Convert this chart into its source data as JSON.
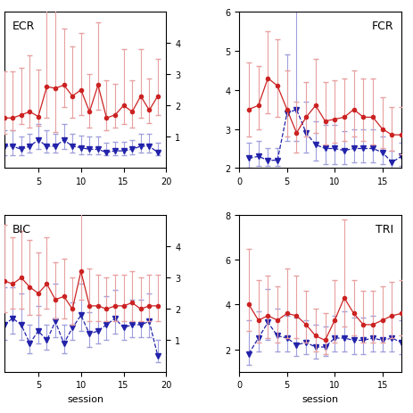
{
  "ECR": {
    "label": "ECR",
    "xlim": [
      1,
      20
    ],
    "ylim": [
      0,
      5
    ],
    "yticks": [
      1,
      2,
      3,
      4
    ],
    "xticks": [
      5,
      10,
      15,
      20
    ],
    "yaxis_right": true,
    "red_x": [
      1,
      2,
      3,
      4,
      5,
      6,
      7,
      8,
      9,
      10,
      11,
      12,
      13,
      14,
      15,
      16,
      17,
      18,
      19
    ],
    "red_y": [
      1.6,
      1.6,
      1.7,
      1.8,
      1.65,
      2.6,
      2.55,
      2.65,
      2.3,
      2.5,
      1.8,
      2.65,
      1.6,
      1.7,
      2.0,
      1.8,
      2.3,
      1.85,
      2.3
    ],
    "red_err_lo": [
      0.5,
      0.4,
      0.3,
      0.5,
      0.3,
      1.0,
      1.4,
      0.7,
      0.7,
      0.8,
      0.5,
      0.8,
      0.4,
      0.4,
      0.6,
      0.5,
      0.7,
      0.4,
      0.6
    ],
    "red_err_hi": [
      1.5,
      1.5,
      1.5,
      1.8,
      1.5,
      2.5,
      2.5,
      1.8,
      1.6,
      1.8,
      1.2,
      2.0,
      1.2,
      1.0,
      1.8,
      1.0,
      1.5,
      1.0,
      1.2
    ],
    "blue_x": [
      1,
      2,
      3,
      4,
      5,
      6,
      7,
      8,
      9,
      10,
      11,
      12,
      13,
      14,
      15,
      16,
      17,
      18,
      19
    ],
    "blue_y": [
      0.7,
      0.7,
      0.6,
      0.7,
      0.9,
      0.7,
      0.7,
      0.9,
      0.7,
      0.65,
      0.6,
      0.6,
      0.5,
      0.55,
      0.55,
      0.6,
      0.7,
      0.7,
      0.5
    ],
    "blue_err_lo": [
      0.3,
      0.3,
      0.2,
      0.2,
      0.3,
      0.2,
      0.2,
      0.3,
      0.2,
      0.2,
      0.15,
      0.15,
      0.1,
      0.15,
      0.15,
      0.15,
      0.2,
      0.2,
      0.1
    ],
    "blue_err_hi": [
      0.5,
      0.5,
      0.4,
      0.4,
      0.5,
      0.5,
      0.4,
      0.5,
      0.4,
      0.4,
      0.4,
      0.4,
      0.3,
      0.3,
      0.3,
      0.3,
      0.4,
      0.4,
      0.3
    ]
  },
  "FCR": {
    "label": "FCR",
    "xlim": [
      0,
      17
    ],
    "ylim": [
      2,
      6
    ],
    "yticks": [
      2,
      3,
      4,
      5,
      6
    ],
    "xticks": [
      0,
      5,
      10,
      15
    ],
    "yaxis_right": false,
    "red_x": [
      1,
      2,
      3,
      4,
      5,
      6,
      7,
      8,
      9,
      10,
      11,
      12,
      13,
      14,
      15,
      16,
      17
    ],
    "red_y": [
      3.5,
      3.6,
      4.3,
      4.1,
      3.5,
      2.9,
      3.3,
      3.6,
      3.2,
      3.25,
      3.3,
      3.5,
      3.3,
      3.3,
      3.0,
      2.85,
      2.85
    ],
    "red_err_lo": [
      0.7,
      0.6,
      0.9,
      0.8,
      0.7,
      0.5,
      0.5,
      0.7,
      0.6,
      0.6,
      0.6,
      0.7,
      0.6,
      0.7,
      0.5,
      0.4,
      0.5
    ],
    "red_err_hi": [
      1.2,
      1.0,
      1.2,
      1.2,
      1.0,
      0.8,
      0.9,
      1.2,
      1.0,
      1.0,
      1.0,
      1.0,
      1.0,
      1.0,
      0.8,
      0.7,
      0.7
    ],
    "blue_x": [
      1,
      2,
      3,
      4,
      5,
      6,
      7,
      8,
      9,
      10,
      11,
      12,
      13,
      14,
      15,
      16,
      17
    ],
    "blue_y": [
      2.25,
      2.3,
      2.2,
      2.2,
      3.4,
      3.5,
      2.9,
      2.6,
      2.5,
      2.5,
      2.45,
      2.5,
      2.5,
      2.5,
      2.4,
      2.15,
      2.3
    ],
    "blue_err_lo": [
      0.25,
      0.25,
      0.15,
      0.15,
      0.7,
      0.8,
      0.5,
      0.4,
      0.4,
      0.4,
      0.35,
      0.35,
      0.35,
      0.35,
      0.3,
      0.2,
      0.25
    ],
    "blue_err_hi": [
      0.4,
      0.4,
      0.3,
      0.3,
      1.5,
      2.6,
      0.8,
      0.6,
      0.6,
      0.6,
      0.5,
      0.5,
      0.5,
      0.5,
      0.4,
      0.3,
      0.35
    ]
  },
  "BIC": {
    "label": "BIC",
    "xlim": [
      1,
      20
    ],
    "ylim": [
      0,
      5
    ],
    "yticks": [
      1,
      2,
      3,
      4
    ],
    "xticks": [
      5,
      10,
      15,
      20
    ],
    "yaxis_right": true,
    "red_x": [
      1,
      2,
      3,
      4,
      5,
      6,
      7,
      8,
      9,
      10,
      11,
      12,
      13,
      14,
      15,
      16,
      17,
      18,
      19
    ],
    "red_y": [
      2.9,
      2.8,
      3.0,
      2.7,
      2.5,
      2.8,
      2.3,
      2.4,
      2.0,
      3.2,
      2.1,
      2.1,
      2.0,
      2.1,
      2.1,
      2.2,
      2.0,
      2.1,
      2.1
    ],
    "red_err_lo": [
      1.0,
      0.8,
      1.0,
      0.9,
      0.7,
      0.8,
      0.6,
      0.7,
      0.5,
      0.9,
      0.5,
      0.5,
      0.4,
      0.5,
      0.5,
      0.6,
      0.4,
      0.5,
      0.5
    ],
    "red_err_hi": [
      1.8,
      1.5,
      1.5,
      1.5,
      1.3,
      1.5,
      1.2,
      1.2,
      1.0,
      2.0,
      1.2,
      1.0,
      1.0,
      1.0,
      1.0,
      1.0,
      1.0,
      1.0,
      1.0
    ],
    "blue_x": [
      1,
      2,
      3,
      4,
      5,
      6,
      7,
      8,
      9,
      10,
      11,
      12,
      13,
      14,
      15,
      16,
      17,
      18,
      19
    ],
    "blue_y": [
      1.5,
      1.7,
      1.5,
      0.9,
      1.3,
      1.0,
      1.6,
      0.9,
      1.4,
      1.8,
      1.2,
      1.3,
      1.5,
      1.7,
      1.4,
      1.5,
      1.5,
      1.6,
      0.5
    ],
    "blue_err_lo": [
      0.5,
      0.5,
      0.5,
      0.3,
      0.4,
      0.3,
      0.5,
      0.3,
      0.4,
      0.5,
      0.4,
      0.4,
      0.5,
      0.5,
      0.4,
      0.4,
      0.4,
      0.5,
      0.2
    ],
    "blue_err_hi": [
      1.2,
      1.0,
      1.0,
      0.6,
      0.8,
      0.5,
      1.2,
      0.6,
      0.8,
      1.0,
      0.7,
      0.8,
      0.9,
      0.9,
      0.7,
      0.8,
      0.8,
      0.9,
      0.5
    ]
  },
  "TRI": {
    "label": "TRI",
    "xlim": [
      0,
      17
    ],
    "ylim": [
      1,
      8
    ],
    "yticks": [
      2,
      4,
      6,
      8
    ],
    "xticks": [
      0,
      5,
      10,
      15
    ],
    "yaxis_right": false,
    "red_x": [
      1,
      2,
      3,
      4,
      5,
      6,
      7,
      8,
      9,
      10,
      11,
      12,
      13,
      14,
      15,
      16,
      17
    ],
    "red_y": [
      4.0,
      3.3,
      3.5,
      3.3,
      3.6,
      3.5,
      3.1,
      2.6,
      2.4,
      3.3,
      4.3,
      3.6,
      3.1,
      3.1,
      3.3,
      3.5,
      3.6
    ],
    "red_err_lo": [
      1.2,
      1.0,
      1.0,
      1.0,
      1.1,
      1.0,
      0.8,
      0.7,
      0.6,
      1.0,
      1.3,
      1.0,
      0.8,
      0.8,
      1.0,
      1.0,
      1.0
    ],
    "red_err_hi": [
      2.5,
      1.8,
      1.8,
      1.5,
      2.0,
      1.8,
      1.5,
      1.2,
      1.2,
      1.8,
      3.5,
      1.5,
      1.5,
      1.5,
      1.5,
      1.5,
      1.5
    ],
    "blue_x": [
      1,
      2,
      3,
      4,
      5,
      6,
      7,
      8,
      9,
      10,
      11,
      12,
      13,
      14,
      15,
      16,
      17
    ],
    "blue_y": [
      1.8,
      2.5,
      3.2,
      2.6,
      2.5,
      2.2,
      2.3,
      2.1,
      2.1,
      2.5,
      2.5,
      2.4,
      2.4,
      2.5,
      2.4,
      2.5,
      2.3
    ],
    "blue_err_lo": [
      0.5,
      0.6,
      0.8,
      0.7,
      0.6,
      0.5,
      0.5,
      0.5,
      0.4,
      0.6,
      0.6,
      0.6,
      0.6,
      0.6,
      0.5,
      0.6,
      0.5
    ],
    "blue_err_hi": [
      1.5,
      1.2,
      1.5,
      1.2,
      1.0,
      1.2,
      1.0,
      1.0,
      0.9,
      1.0,
      1.2,
      1.0,
      1.0,
      1.0,
      0.9,
      1.0,
      1.0
    ]
  },
  "red_color": "#cc2222",
  "red_err_color": "#e8a0a0",
  "blue_color": "#2222aa",
  "blue_err_color": "#a0a0dd",
  "xlabel": "session",
  "figsize": [
    4.64,
    4.64
  ],
  "dpi": 100
}
